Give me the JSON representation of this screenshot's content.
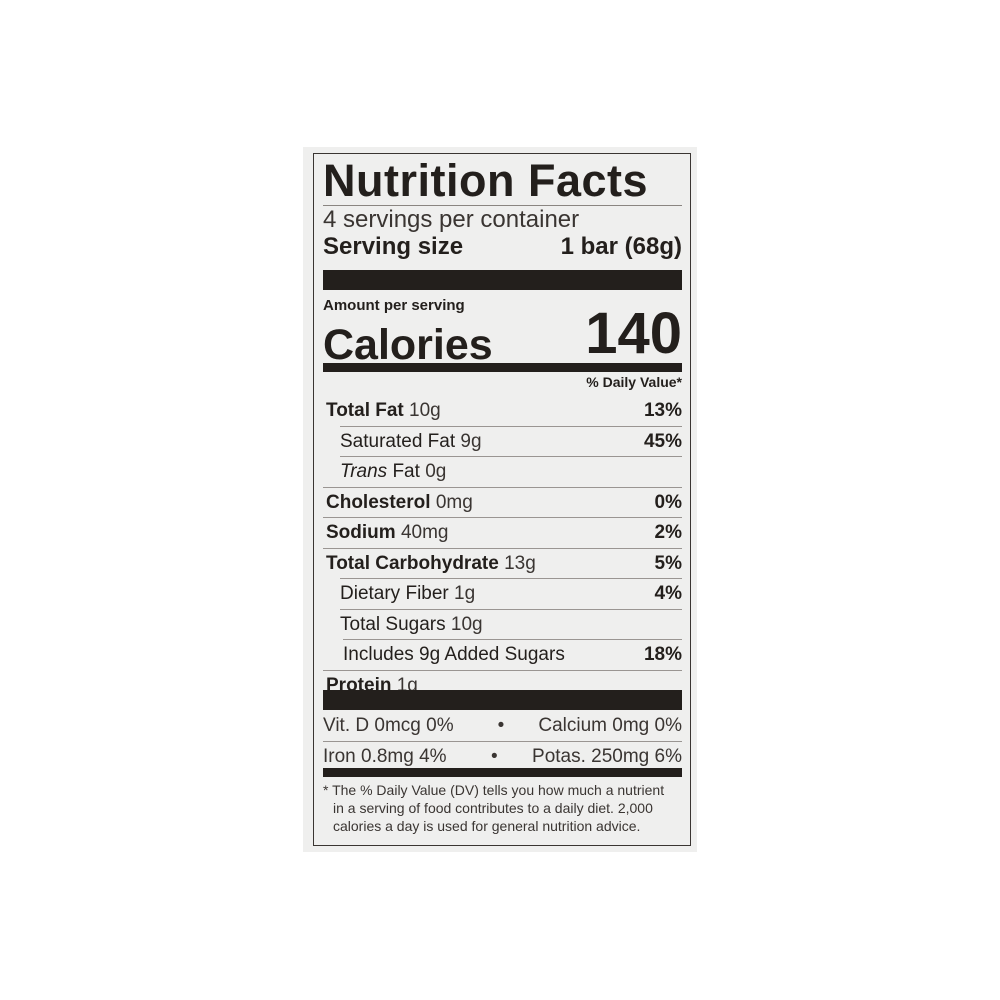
{
  "title": "Nutrition Facts",
  "servings_per_container": "4 servings per container",
  "serving_size": {
    "label": "Serving size",
    "value": "1 bar (68g)"
  },
  "amount_per_serving": "Amount per serving",
  "calories": {
    "label": "Calories",
    "value": "140"
  },
  "daily_value_header": "% Daily Value*",
  "nutrients": [
    {
      "name": "Total Fat",
      "amount": "10g",
      "dv": "13%",
      "bold": true,
      "indent": 0
    },
    {
      "name": "Saturated Fat",
      "amount": "9g",
      "dv": "45%",
      "bold": false,
      "indent": 1
    },
    {
      "name": "Trans",
      "name_suffix": " Fat",
      "amount": "0g",
      "dv": "",
      "bold": false,
      "indent": 1,
      "italic": true
    },
    {
      "name": "Cholesterol",
      "amount": "0mg",
      "dv": "0%",
      "bold": true,
      "indent": 0
    },
    {
      "name": "Sodium",
      "amount": "40mg",
      "dv": "2%",
      "bold": true,
      "indent": 0
    },
    {
      "name": "Total Carbohydrate",
      "amount": "13g",
      "dv": "5%",
      "bold": true,
      "indent": 0
    },
    {
      "name": "Dietary Fiber",
      "amount": "1g",
      "dv": "4%",
      "bold": false,
      "indent": 1
    },
    {
      "name": "Total Sugars",
      "amount": "10g",
      "dv": "",
      "bold": false,
      "indent": 2
    },
    {
      "name": "Includes 9g Added Sugars",
      "amount": "",
      "dv": "18%",
      "bold": false,
      "indent": 3
    },
    {
      "name": "Protein",
      "amount": "1g",
      "dv": "",
      "bold": true,
      "indent": 0
    }
  ],
  "vitamins": [
    {
      "left": "Vit. D 0mcg 0%",
      "bullet": "•",
      "right": "Calcium 0mg 0%"
    },
    {
      "left": "Iron 0.8mg 4%",
      "bullet": "•",
      "right": "Potas. 250mg 6%"
    }
  ],
  "footnote": [
    "* The % Daily Value (DV) tells you how much a nutrient",
    "in a serving of food contributes to a daily diet. 2,000",
    "calories a day is used for general nutrition advice."
  ]
}
